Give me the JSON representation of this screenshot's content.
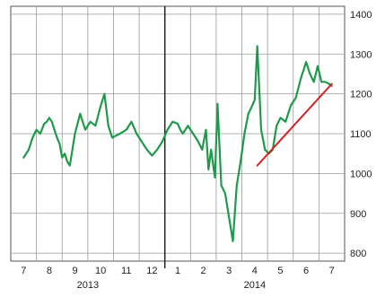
{
  "chart_data": {
    "type": "line",
    "title": "",
    "xlabel": "",
    "ylabel": "",
    "ylim": [
      780,
      1420
    ],
    "y_axis_position": "right",
    "grid": true,
    "x_ticks": [
      "7",
      "8",
      "9",
      "10",
      "11",
      "12",
      "1",
      "2",
      "3",
      "4",
      "5",
      "6",
      "7"
    ],
    "x_years": [
      "2013",
      "2014"
    ],
    "y_ticks": [
      800,
      900,
      1000,
      1100,
      1200,
      1300,
      1400
    ],
    "year_divider_at_month_index": 6,
    "series": [
      {
        "color": "#1e9a4a",
        "x": [
          0,
          0.2,
          0.35,
          0.5,
          0.65,
          0.8,
          0.9,
          1.0,
          1.1,
          1.2,
          1.3,
          1.4,
          1.5,
          1.6,
          1.7,
          1.8,
          2.0,
          2.2,
          2.4,
          2.6,
          2.8,
          3.0,
          3.15,
          3.3,
          3.45,
          3.6,
          3.75,
          4.0,
          4.2,
          4.4,
          4.6,
          4.8,
          5.0,
          5.2,
          5.4,
          5.6,
          5.8,
          6.0,
          6.1,
          6.2,
          6.4,
          6.6,
          6.8,
          6.95,
          7.1,
          7.2,
          7.3,
          7.45,
          7.55,
          7.7,
          7.85,
          8.0,
          8.15,
          8.3,
          8.45,
          8.6,
          8.75,
          8.9,
          9.0,
          9.1,
          9.25,
          9.4,
          9.55,
          9.7,
          9.85,
          10.0,
          10.2,
          10.4,
          10.6,
          10.8,
          11.0,
          11.15,
          11.3,
          11.45,
          11.6,
          11.75,
          11.9,
          12.0
        ],
        "values": [
          1040,
          1060,
          1090,
          1110,
          1100,
          1125,
          1130,
          1140,
          1130,
          1110,
          1090,
          1075,
          1040,
          1050,
          1030,
          1020,
          1100,
          1150,
          1110,
          1130,
          1120,
          1170,
          1200,
          1120,
          1090,
          1095,
          1100,
          1110,
          1130,
          1100,
          1080,
          1060,
          1045,
          1060,
          1080,
          1110,
          1130,
          1125,
          1110,
          1100,
          1120,
          1100,
          1080,
          1060,
          1110,
          1010,
          1060,
          990,
          1175,
          970,
          950,
          890,
          830,
          970,
          1030,
          1100,
          1150,
          1170,
          1185,
          1320,
          1110,
          1060,
          1050,
          1060,
          1120,
          1140,
          1130,
          1170,
          1190,
          1240,
          1280,
          1250,
          1230,
          1270,
          1230,
          1230,
          1225,
          1220
        ]
      },
      {
        "name": "",
        "color": "#d62020",
        "x": [
          9.1,
          12.0
        ],
        "values": [
          1020,
          1225
        ]
      }
    ]
  }
}
